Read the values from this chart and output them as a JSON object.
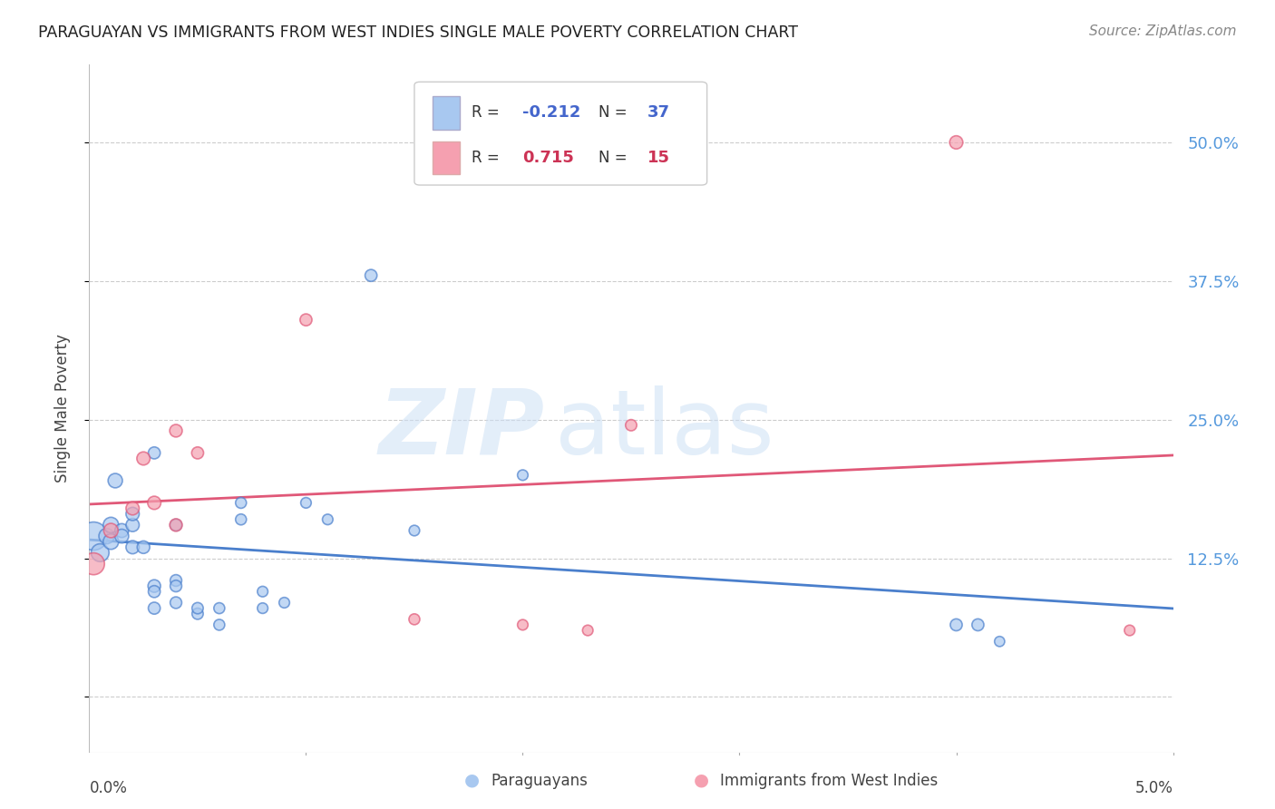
{
  "title": "PARAGUAYAN VS IMMIGRANTS FROM WEST INDIES SINGLE MALE POVERTY CORRELATION CHART",
  "source": "Source: ZipAtlas.com",
  "ylabel": "Single Male Poverty",
  "xlim": [
    0.0,
    0.05
  ],
  "ylim": [
    -0.05,
    0.57
  ],
  "yticks": [
    0.0,
    0.125,
    0.25,
    0.375,
    0.5
  ],
  "ytick_labels": [
    "",
    "12.5%",
    "25.0%",
    "37.5%",
    "50.0%"
  ],
  "paraguayan_R": "-0.212",
  "paraguayan_N": "37",
  "west_indies_R": "0.715",
  "west_indies_N": "15",
  "blue_color": "#A8C8F0",
  "pink_color": "#F5A0B0",
  "blue_line_color": "#4A7FCC",
  "pink_line_color": "#E05878",
  "watermark_zip": "ZIP",
  "watermark_atlas": "atlas",
  "paraguayan_x": [
    0.0002,
    0.0005,
    0.0008,
    0.001,
    0.001,
    0.0012,
    0.0015,
    0.0015,
    0.002,
    0.002,
    0.002,
    0.0025,
    0.003,
    0.003,
    0.003,
    0.003,
    0.004,
    0.004,
    0.004,
    0.004,
    0.005,
    0.005,
    0.006,
    0.006,
    0.007,
    0.007,
    0.008,
    0.008,
    0.009,
    0.01,
    0.011,
    0.013,
    0.015,
    0.02,
    0.04,
    0.041,
    0.042
  ],
  "paraguayan_y": [
    0.145,
    0.13,
    0.145,
    0.14,
    0.155,
    0.195,
    0.15,
    0.145,
    0.135,
    0.155,
    0.165,
    0.135,
    0.1,
    0.22,
    0.095,
    0.08,
    0.105,
    0.1,
    0.085,
    0.155,
    0.075,
    0.08,
    0.065,
    0.08,
    0.175,
    0.16,
    0.08,
    0.095,
    0.085,
    0.175,
    0.16,
    0.38,
    0.15,
    0.2,
    0.065,
    0.065,
    0.05
  ],
  "west_indies_x": [
    0.0002,
    0.001,
    0.002,
    0.0025,
    0.003,
    0.004,
    0.004,
    0.005,
    0.01,
    0.015,
    0.02,
    0.023,
    0.025,
    0.04,
    0.048
  ],
  "west_indies_y": [
    0.12,
    0.15,
    0.17,
    0.215,
    0.175,
    0.24,
    0.155,
    0.22,
    0.34,
    0.07,
    0.065,
    0.06,
    0.245,
    0.5,
    0.06
  ],
  "paraguayan_sizes": [
    500,
    200,
    150,
    150,
    150,
    130,
    120,
    120,
    110,
    110,
    110,
    100,
    100,
    90,
    90,
    90,
    85,
    85,
    85,
    85,
    80,
    80,
    75,
    75,
    75,
    75,
    70,
    70,
    70,
    70,
    70,
    90,
    70,
    70,
    90,
    90,
    65
  ],
  "west_indies_sizes": [
    300,
    130,
    110,
    110,
    110,
    100,
    100,
    90,
    90,
    75,
    70,
    70,
    80,
    110,
    70
  ]
}
